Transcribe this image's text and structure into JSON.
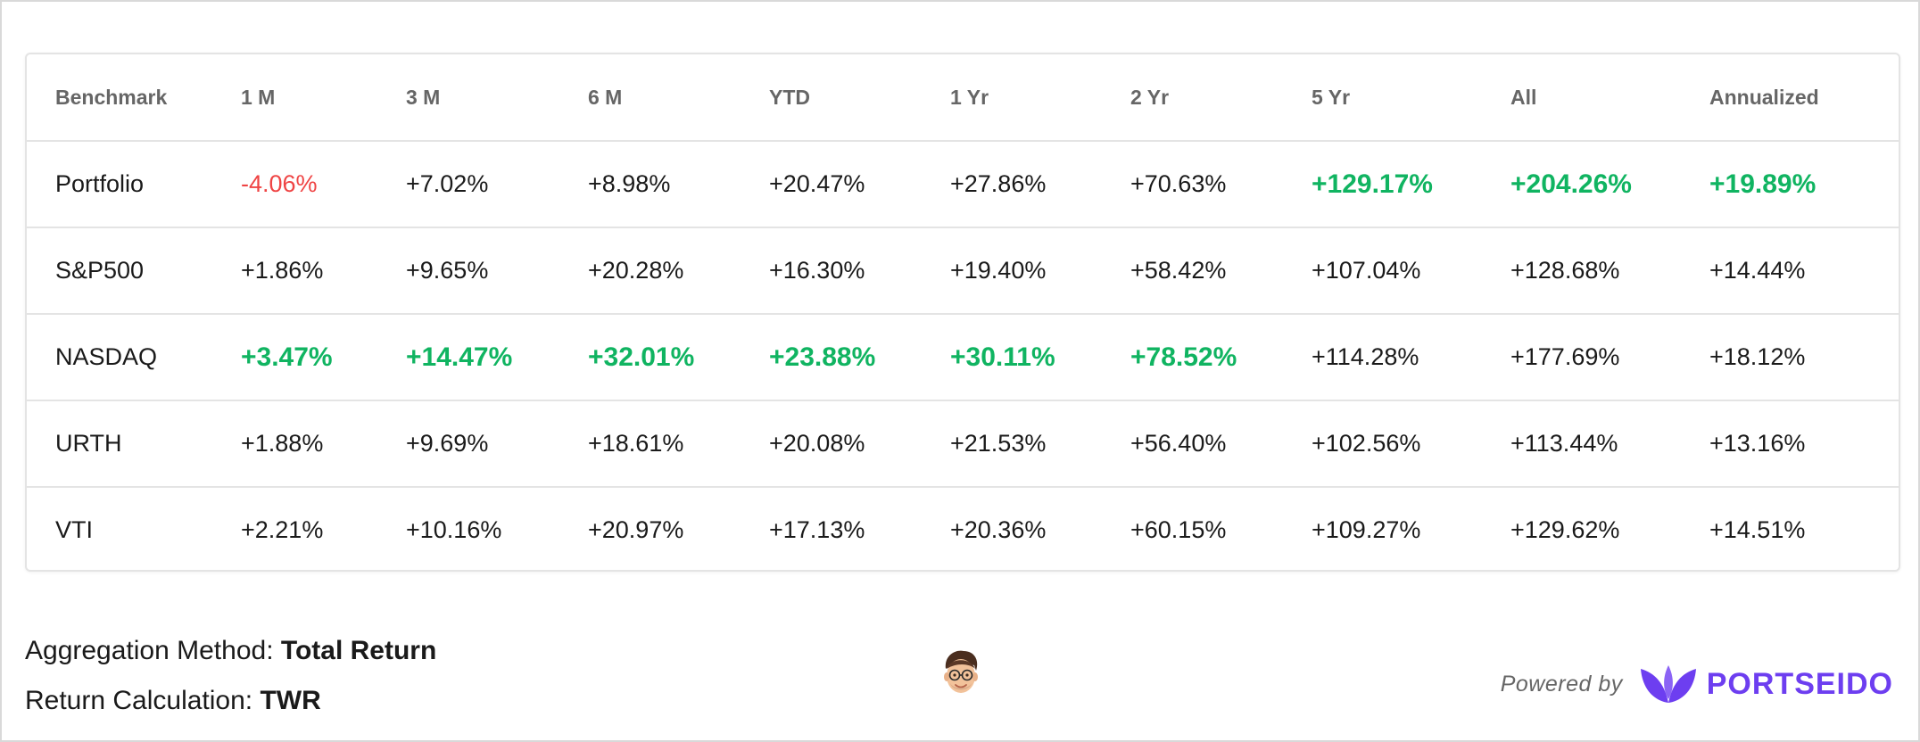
{
  "table": {
    "headers": [
      "Benchmark",
      "1 M",
      "3 M",
      "6 M",
      "YTD",
      "1 Yr",
      "2 Yr",
      "5 Yr",
      "All",
      "Annualized"
    ],
    "rows": [
      {
        "name": "Portfolio",
        "values": [
          "-4.06%",
          "+7.02%",
          "+8.98%",
          "+20.47%",
          "+27.86%",
          "+70.63%",
          "+129.17%",
          "+204.26%",
          "+19.89%"
        ]
      },
      {
        "name": "S&P500",
        "values": [
          "+1.86%",
          "+9.65%",
          "+20.28%",
          "+16.30%",
          "+19.40%",
          "+58.42%",
          "+107.04%",
          "+128.68%",
          "+14.44%"
        ]
      },
      {
        "name": "NASDAQ",
        "values": [
          "+3.47%",
          "+14.47%",
          "+32.01%",
          "+23.88%",
          "+30.11%",
          "+78.52%",
          "+114.28%",
          "+177.69%",
          "+18.12%"
        ]
      },
      {
        "name": "URTH",
        "values": [
          "+1.88%",
          "+9.69%",
          "+18.61%",
          "+20.08%",
          "+21.53%",
          "+56.40%",
          "+102.56%",
          "+113.44%",
          "+13.16%"
        ]
      },
      {
        "name": "VTI",
        "values": [
          "+2.21%",
          "+10.16%",
          "+20.97%",
          "+17.13%",
          "+20.36%",
          "+60.15%",
          "+109.27%",
          "+129.62%",
          "+14.51%"
        ]
      }
    ]
  },
  "footer": {
    "aggregation_label": "Aggregation Method:",
    "aggregation_value": "Total Return",
    "return_label": "Return Calculation:",
    "return_value": "TWR",
    "avatar_icon": "memoji-avatar-icon",
    "powered_by": "Powered by",
    "brand_name": "PORTSEIDO",
    "brand_icon": "leaf-logo-icon"
  },
  "colors": {
    "positive": "#12b76a",
    "negative": "#ef4444",
    "best": "#10b461",
    "brand": "#6d3ef0",
    "header_text": "#666666"
  }
}
